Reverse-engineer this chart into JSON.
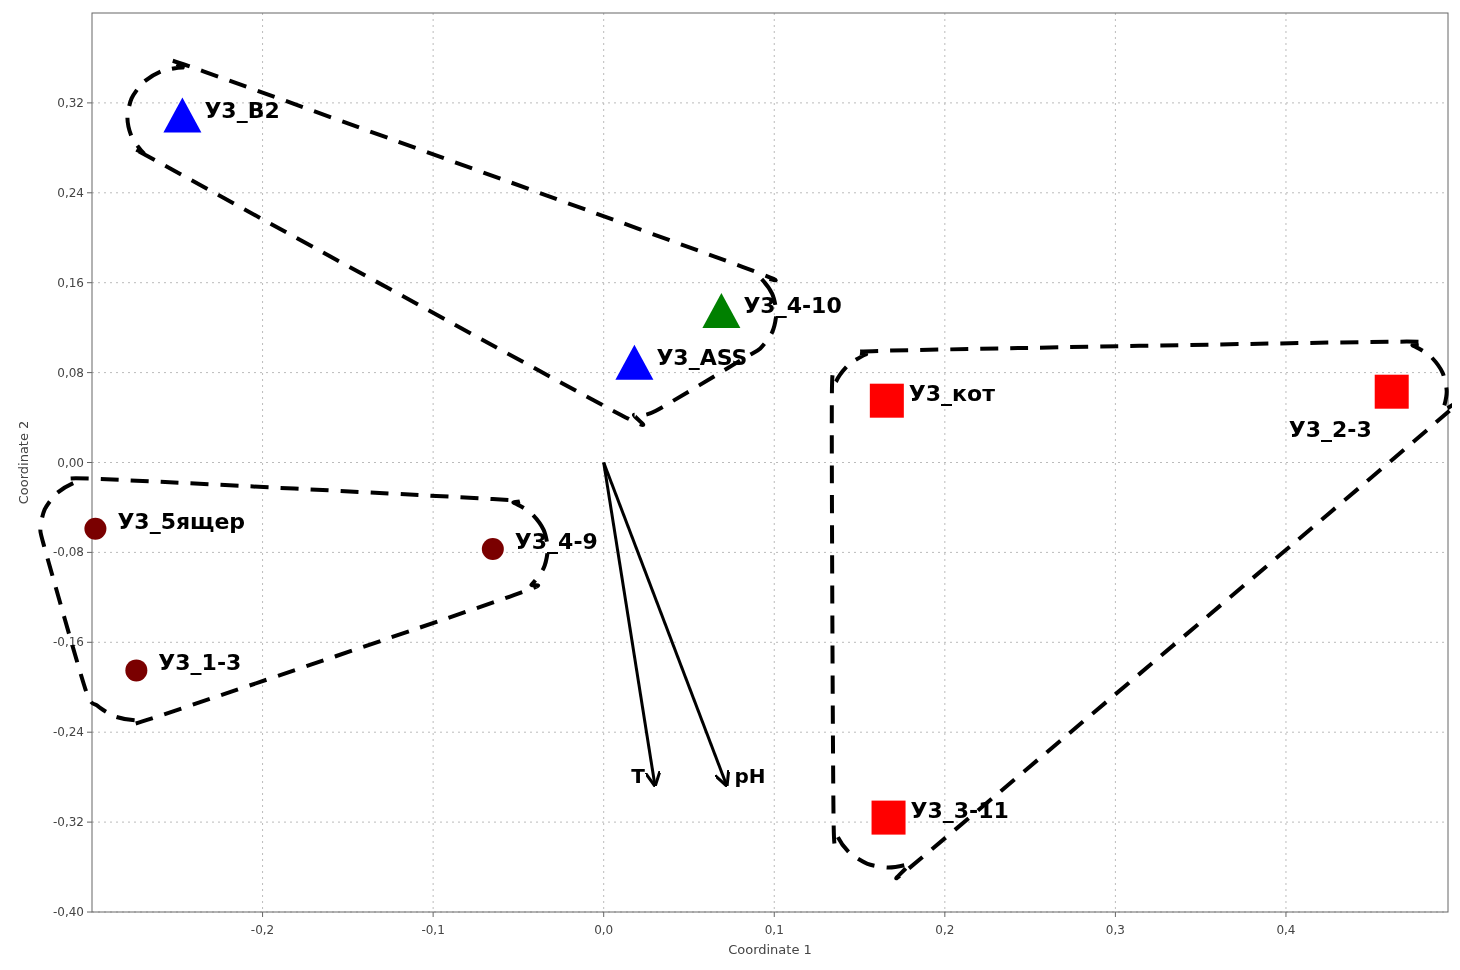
{
  "chart_data": {
    "type": "scatter",
    "xlabel": "Coordinate 1",
    "ylabel": "Coordinate 2",
    "xlim": [
      -0.3,
      0.495
    ],
    "ylim": [
      -0.4,
      0.4
    ],
    "xticks": [
      {
        "value": -0.2,
        "label": "-0,2"
      },
      {
        "value": -0.1,
        "label": "-0,1"
      },
      {
        "value": 0,
        "label": "0,0"
      },
      {
        "value": 0.1,
        "label": "0,1"
      },
      {
        "value": 0.2,
        "label": "0,2"
      },
      {
        "value": 0.3,
        "label": "0,3"
      },
      {
        "value": 0.4,
        "label": "0,4"
      }
    ],
    "yticks": [
      {
        "value": -0.4,
        "label": "-0,40"
      },
      {
        "value": -0.32,
        "label": "-0,32"
      },
      {
        "value": -0.24,
        "label": "-0,24"
      },
      {
        "value": -0.16,
        "label": "-0,16"
      },
      {
        "value": -0.08,
        "label": "-0,08"
      },
      {
        "value": 0,
        "label": "0,00"
      },
      {
        "value": 0.08,
        "label": "0,08"
      },
      {
        "value": 0.16,
        "label": "0,16"
      },
      {
        "value": 0.24,
        "label": "0,24"
      },
      {
        "value": 0.32,
        "label": "0,32"
      }
    ],
    "grid": true,
    "series": [
      {
        "color": "#0000ff",
        "marker": "triangle",
        "x": [
          -0.247,
          0.018
        ],
        "values": [
          0.307,
          0.087
        ]
      },
      {
        "color": "#008000",
        "marker": "triangle",
        "x": [
          0.069
        ],
        "values": [
          0.133
        ]
      },
      {
        "color": "#ff0000",
        "marker": "square",
        "x": [
          0.166,
          0.462,
          0.167
        ],
        "values": [
          0.055,
          0.063,
          -0.316
        ]
      },
      {
        "color": "#7a0000",
        "marker": "circle",
        "x": [
          -0.298,
          -0.065,
          -0.274
        ],
        "values": [
          -0.059,
          -0.077,
          -0.185
        ]
      },
      {
        "name": "T",
        "type": "line",
        "color": "#000000",
        "x": [
          0,
          0.03
        ],
        "values": [
          0,
          -0.287
        ]
      },
      {
        "name": "pH",
        "type": "line",
        "color": "#000000",
        "x": [
          0,
          0.072
        ],
        "values": [
          0,
          -0.287
        ]
      }
    ],
    "annotations": [
      {
        "text": "У3_B2",
        "x": -0.247,
        "y": 0.307
      },
      {
        "text": "У3_ASS",
        "x": 0.018,
        "y": 0.087
      },
      {
        "text": "У3_4-10",
        "x": 0.069,
        "y": 0.133
      },
      {
        "text": "У3_кот",
        "x": 0.166,
        "y": 0.055
      },
      {
        "text": "У3_2-3",
        "x": 0.462,
        "y": 0.063
      },
      {
        "text": "У3_3-11",
        "x": 0.167,
        "y": -0.316
      },
      {
        "text": "У3_5ящер",
        "x": -0.298,
        "y": -0.059
      },
      {
        "text": "У3_4-9",
        "x": -0.065,
        "y": -0.077
      },
      {
        "text": "У3_1-3",
        "x": -0.274,
        "y": -0.185
      }
    ]
  }
}
